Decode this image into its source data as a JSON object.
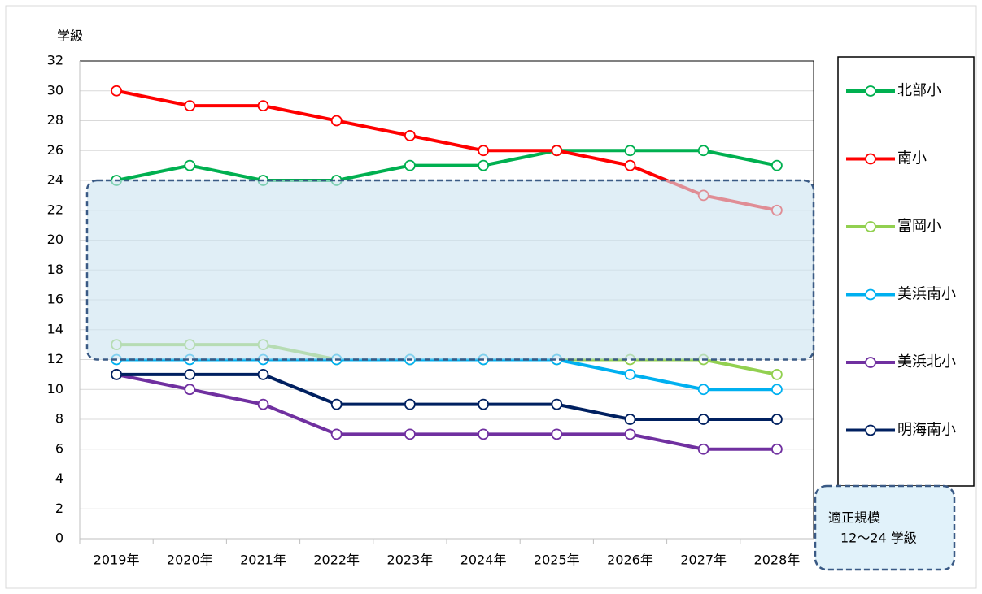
{
  "chart_data": {
    "type": "line",
    "y_label": "学級",
    "categories": [
      "2019年",
      "2020年",
      "2021年",
      "2022年",
      "2023年",
      "2024年",
      "2025年",
      "2026年",
      "2027年",
      "2028年"
    ],
    "series": [
      {
        "name": "北部小",
        "color": "#00b050",
        "values": [
          24,
          25,
          24,
          24,
          25,
          25,
          26,
          26,
          26,
          25
        ]
      },
      {
        "name": "南小",
        "color": "#ff0000",
        "values": [
          30,
          29,
          29,
          28,
          27,
          26,
          26,
          25,
          23,
          22
        ]
      },
      {
        "name": "富岡小",
        "color": "#92d050",
        "values": [
          13,
          13,
          13,
          12,
          12,
          12,
          12,
          12,
          12,
          11
        ]
      },
      {
        "name": "美浜南小",
        "color": "#00b0f0",
        "values": [
          12,
          12,
          12,
          12,
          12,
          12,
          12,
          11,
          10,
          10
        ]
      },
      {
        "name": "美浜北小",
        "color": "#7030a0",
        "values": [
          11,
          10,
          9,
          7,
          7,
          7,
          7,
          7,
          6,
          6
        ]
      },
      {
        "name": "明海南小",
        "color": "#002060",
        "values": [
          11,
          11,
          11,
          9,
          9,
          9,
          9,
          8,
          8,
          8
        ]
      }
    ],
    "ylim": [
      0,
      32
    ],
    "yticks": [
      0,
      2,
      4,
      6,
      8,
      10,
      12,
      14,
      16,
      18,
      20,
      22,
      24,
      26,
      28,
      30,
      32
    ],
    "grid": true,
    "legend": "right",
    "band_range": [
      12,
      24
    ],
    "annotation": [
      "適正規模",
      "12〜24 学級"
    ]
  }
}
